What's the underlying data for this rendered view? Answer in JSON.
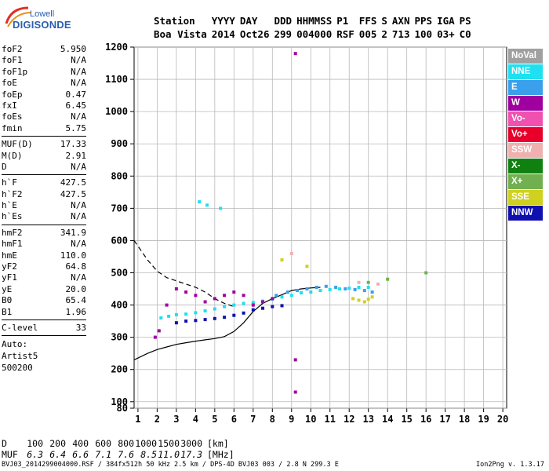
{
  "logo": {
    "brand": "Lowell",
    "product": "DIGISONDE"
  },
  "header": {
    "labels": [
      "Station",
      "YYYY",
      "DAY",
      "DDD",
      "HHMMSS",
      "P1",
      "FFS",
      "S",
      "AXN",
      "PPS",
      "IGA",
      "PS"
    ],
    "values": [
      "Boa Vista",
      "2014",
      "Oct26",
      "299",
      "004000",
      "RSF",
      "005",
      "2",
      "713",
      "100",
      "03+",
      "C0"
    ]
  },
  "params": {
    "group1": [
      {
        "label": "foF2",
        "value": "5.950"
      },
      {
        "label": "foF1",
        "value": "N/A"
      },
      {
        "label": "foF1p",
        "value": "N/A"
      },
      {
        "label": "foE",
        "value": "N/A"
      },
      {
        "label": "foEp",
        "value": "0.47"
      },
      {
        "label": "fxI",
        "value": "6.45"
      },
      {
        "label": "foEs",
        "value": "N/A"
      },
      {
        "label": "fmin",
        "value": "5.75"
      }
    ],
    "group2": [
      {
        "label": "MUF(D)",
        "value": "17.33"
      },
      {
        "label": "M(D)",
        "value": "2.91"
      },
      {
        "label": "D",
        "value": "N/A"
      }
    ],
    "group3": [
      {
        "label": "h`F",
        "value": "427.5"
      },
      {
        "label": "h`F2",
        "value": "427.5"
      },
      {
        "label": "h`E",
        "value": "N/A"
      },
      {
        "label": "h`Es",
        "value": "N/A"
      }
    ],
    "group4": [
      {
        "label": "hmF2",
        "value": "341.9"
      },
      {
        "label": "hmF1",
        "value": "N/A"
      },
      {
        "label": "hmE",
        "value": "110.0"
      },
      {
        "label": "yF2",
        "value": "64.8"
      },
      {
        "label": "yF1",
        "value": "N/A"
      },
      {
        "label": "yE",
        "value": "20.0"
      },
      {
        "label": "B0",
        "value": "65.4"
      },
      {
        "label": "B1",
        "value": "1.96"
      }
    ],
    "group5": [
      {
        "label": "C-level",
        "value": "33"
      }
    ]
  },
  "auto": {
    "line1": "Auto:",
    "line2": "Artist5",
    "line3": "500200"
  },
  "legend": [
    {
      "name": "NoVal",
      "color": "#a0a0a0"
    },
    {
      "name": "NNE",
      "color": "#1ee0f0"
    },
    {
      "name": "E",
      "color": "#3aa0ec"
    },
    {
      "name": "W",
      "color": "#a000a0"
    },
    {
      "name": "Vo-",
      "color": "#f050b0"
    },
    {
      "name": "Vo+",
      "color": "#e8002a"
    },
    {
      "name": "SSW",
      "color": "#f0b0b0"
    },
    {
      "name": "X-",
      "color": "#108010"
    },
    {
      "name": "X+",
      "color": "#70b050"
    },
    {
      "name": "SSE",
      "color": "#d0d020"
    },
    {
      "name": "NNW",
      "color": "#1010b0"
    }
  ],
  "muf_table": {
    "d_label": "D",
    "muf_label": "MUF",
    "d_values": [
      "100",
      "200",
      "400",
      "600",
      "800",
      "1000",
      "1500",
      "3000"
    ],
    "muf_values": [
      "6.3",
      "6.4",
      "6.6",
      "7.1",
      "7.6",
      "8.5",
      "11.0",
      "17.3"
    ],
    "d_unit": "[km]",
    "muf_unit": "[MHz]"
  },
  "footer": {
    "left": "BVJ03_2014299004000.RSF / 384fx512h 50 kHz 2.5 km / DPS-4D BVJ03 003 / 2.8 N 299.3 E",
    "right": "Ion2Png v. 1.3.17"
  },
  "chart_data": {
    "type": "scatter",
    "xlim": [
      0.8,
      20.2
    ],
    "ylim": [
      80,
      1200
    ],
    "x_ticks": [
      1,
      2,
      3,
      4,
      5,
      6,
      7,
      8,
      9,
      10,
      11,
      12,
      13,
      14,
      15,
      16,
      17,
      18,
      19,
      20
    ],
    "y_ticks": [
      80,
      100,
      200,
      300,
      400,
      500,
      600,
      700,
      800,
      900,
      1000,
      1100,
      1200
    ],
    "grid": true,
    "legend_position": "right",
    "series": [
      {
        "name": "NNE",
        "points": [
          [
            2.2,
            360
          ],
          [
            2.6,
            365
          ],
          [
            3.0,
            370
          ],
          [
            3.5,
            372
          ],
          [
            4.0,
            376
          ],
          [
            4.5,
            382
          ],
          [
            5.0,
            388
          ],
          [
            5.5,
            395
          ],
          [
            6.0,
            400
          ],
          [
            6.5,
            405
          ],
          [
            7.0,
            408
          ],
          [
            7.5,
            412
          ],
          [
            8.0,
            418
          ],
          [
            8.5,
            425
          ],
          [
            9.0,
            430
          ],
          [
            9.5,
            438
          ],
          [
            10.0,
            440
          ],
          [
            10.5,
            445
          ],
          [
            11.0,
            448
          ],
          [
            11.5,
            450
          ],
          [
            12.0,
            452
          ],
          [
            12.5,
            455
          ],
          [
            13.0,
            455
          ],
          [
            4.2,
            720
          ],
          [
            4.6,
            710
          ],
          [
            5.3,
            700
          ]
        ]
      },
      {
        "name": "E",
        "points": [
          [
            8.2,
            430
          ],
          [
            8.8,
            440
          ],
          [
            9.3,
            445
          ],
          [
            9.8,
            450
          ],
          [
            10.3,
            455
          ],
          [
            10.8,
            458
          ],
          [
            11.3,
            455
          ],
          [
            11.8,
            450
          ],
          [
            12.3,
            448
          ],
          [
            12.8,
            445
          ],
          [
            13.2,
            440
          ]
        ]
      },
      {
        "name": "W",
        "points": [
          [
            1.9,
            300
          ],
          [
            2.1,
            320
          ],
          [
            2.5,
            400
          ],
          [
            3.0,
            450
          ],
          [
            3.5,
            440
          ],
          [
            4.0,
            430
          ],
          [
            4.5,
            410
          ],
          [
            5.0,
            420
          ],
          [
            5.5,
            430
          ],
          [
            6.0,
            440
          ],
          [
            6.5,
            430
          ],
          [
            7.0,
            400
          ],
          [
            7.5,
            410
          ],
          [
            8.0,
            420
          ],
          [
            9.2,
            1180
          ],
          [
            9.2,
            230
          ],
          [
            9.2,
            130
          ]
        ]
      },
      {
        "name": "NNW",
        "points": [
          [
            3.0,
            345
          ],
          [
            3.5,
            350
          ],
          [
            4.0,
            352
          ],
          [
            4.5,
            355
          ],
          [
            5.0,
            358
          ],
          [
            5.5,
            362
          ],
          [
            6.0,
            368
          ],
          [
            6.5,
            375
          ],
          [
            7.0,
            385
          ],
          [
            7.5,
            390
          ],
          [
            8.0,
            395
          ],
          [
            8.5,
            398
          ]
        ]
      },
      {
        "name": "SSE",
        "points": [
          [
            12.2,
            420
          ],
          [
            12.5,
            415
          ],
          [
            12.8,
            410
          ],
          [
            13.0,
            418
          ],
          [
            13.2,
            425
          ],
          [
            9.8,
            520
          ],
          [
            8.5,
            540
          ]
        ]
      },
      {
        "name": "X+",
        "points": [
          [
            13.0,
            470
          ],
          [
            14.0,
            480
          ],
          [
            16.0,
            500
          ]
        ]
      },
      {
        "name": "SSW",
        "points": [
          [
            9.0,
            560
          ],
          [
            12.5,
            470
          ],
          [
            13.5,
            465
          ]
        ]
      }
    ],
    "curves": [
      {
        "style": "dashed",
        "points": [
          [
            0.8,
            600
          ],
          [
            1.5,
            540
          ],
          [
            2.0,
            505
          ],
          [
            2.5,
            485
          ],
          [
            3.0,
            475
          ],
          [
            3.5,
            465
          ],
          [
            4.0,
            455
          ],
          [
            4.5,
            440
          ],
          [
            5.0,
            420
          ],
          [
            5.5,
            405
          ],
          [
            6.0,
            395
          ]
        ]
      },
      {
        "style": "solid",
        "points": [
          [
            0.8,
            230
          ],
          [
            1.5,
            250
          ],
          [
            2.0,
            262
          ],
          [
            2.5,
            270
          ],
          [
            3.0,
            278
          ],
          [
            3.5,
            283
          ],
          [
            4.0,
            288
          ],
          [
            4.5,
            292
          ],
          [
            5.0,
            296
          ],
          [
            5.5,
            302
          ],
          [
            6.0,
            318
          ],
          [
            6.5,
            345
          ],
          [
            7.0,
            380
          ],
          [
            7.5,
            405
          ],
          [
            8.0,
            420
          ],
          [
            8.5,
            432
          ],
          [
            9.0,
            445
          ],
          [
            9.5,
            450
          ],
          [
            10.0,
            453
          ],
          [
            10.5,
            455
          ]
        ]
      }
    ]
  }
}
